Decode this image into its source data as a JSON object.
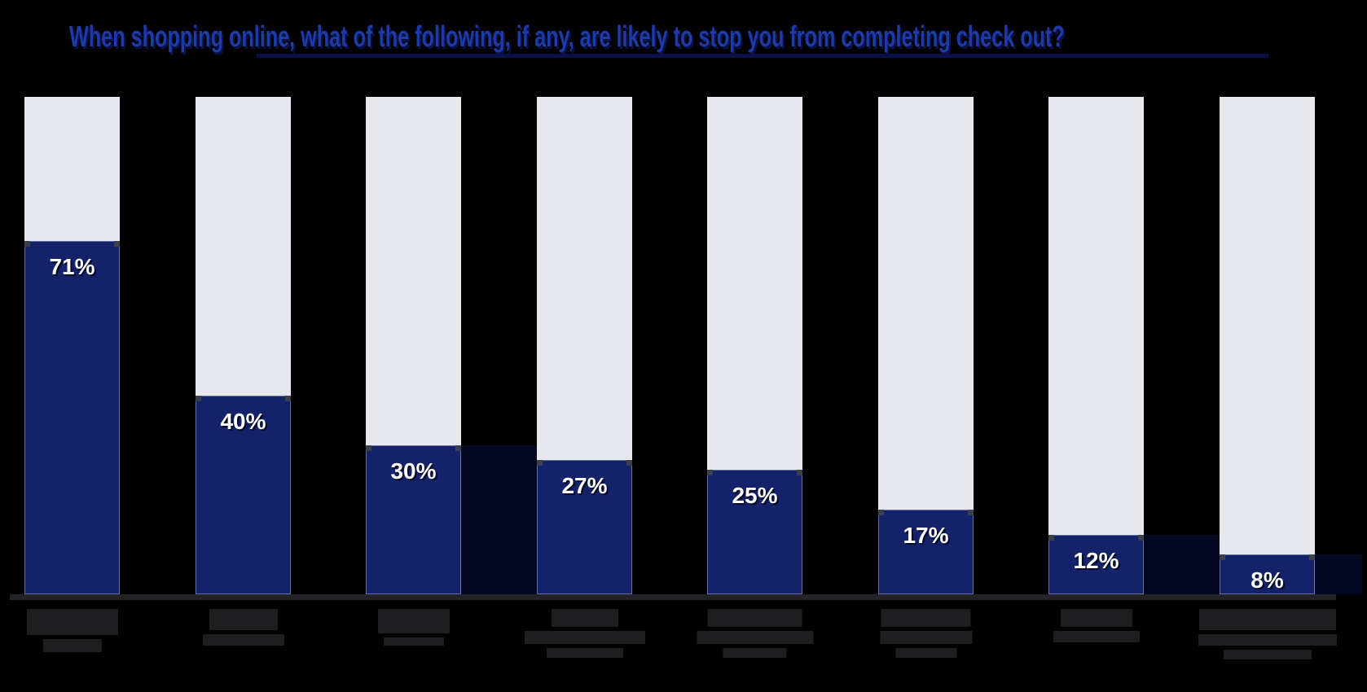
{
  "title": {
    "text": "When shopping online, what of the following, if any, are likely to stop you from completing check out?"
  },
  "chart_data": {
    "type": "bar",
    "title": "When shopping online, what of the following, if any, are likely to stop you from completing check out?",
    "orientation": "vertical",
    "unit": "percent",
    "ylim": [
      0,
      100
    ],
    "grid": false,
    "legend": "none",
    "values": [
      71,
      40,
      30,
      27,
      25,
      17,
      12,
      8
    ],
    "note": "Each light full-height track represents 100%; the navy fill is the share of respondents. The category labels under the bars are rendered as illegible dark redacted blocks in the source image; dark-navy shadow blocks appear in the gaps after bars 3, 7 and 8.",
    "bars": [
      {
        "value": 71,
        "value_label": "71%",
        "category": "",
        "shadow_in_gap": false,
        "label_blocks": [
          [
            112,
            32
          ],
          [
            72,
            16
          ]
        ]
      },
      {
        "value": 40,
        "value_label": "40%",
        "category": "",
        "shadow_in_gap": false,
        "label_blocks": [
          [
            84,
            26
          ],
          [
            100,
            14
          ]
        ]
      },
      {
        "value": 30,
        "value_label": "30%",
        "category": "",
        "shadow_in_gap": true,
        "label_blocks": [
          [
            88,
            30
          ],
          [
            74,
            10
          ]
        ]
      },
      {
        "value": 27,
        "value_label": "27%",
        "category": "",
        "shadow_in_gap": false,
        "label_blocks": [
          [
            82,
            22
          ],
          [
            148,
            16
          ],
          [
            94,
            12
          ]
        ]
      },
      {
        "value": 25,
        "value_label": "25%",
        "category": "",
        "shadow_in_gap": false,
        "label_blocks": [
          [
            116,
            22
          ],
          [
            143,
            16
          ],
          [
            78,
            12
          ]
        ]
      },
      {
        "value": 17,
        "value_label": "17%",
        "category": "",
        "shadow_in_gap": false,
        "label_blocks": [
          [
            110,
            22
          ],
          [
            113,
            16
          ],
          [
            75,
            12
          ]
        ]
      },
      {
        "value": 12,
        "value_label": "12%",
        "category": "",
        "shadow_in_gap": true,
        "label_blocks": [
          [
            88,
            22
          ],
          [
            106,
            14
          ]
        ]
      },
      {
        "value": 8,
        "value_label": "8%",
        "category": "",
        "shadow_in_gap": true,
        "label_blocks": [
          [
            168,
            26
          ],
          [
            170,
            14
          ],
          [
            108,
            12
          ]
        ]
      }
    ]
  },
  "colors": {
    "background": "#000000",
    "bar_track": "#e7e7ee",
    "bar_fill": "#132269",
    "gap_shadow": "#040720",
    "title_text": "#1d3ba6",
    "title_underline": "#0a1148",
    "axis_line": "#232327",
    "category_label_block": "#1e1e20",
    "value_label_text": "#ffffff"
  }
}
